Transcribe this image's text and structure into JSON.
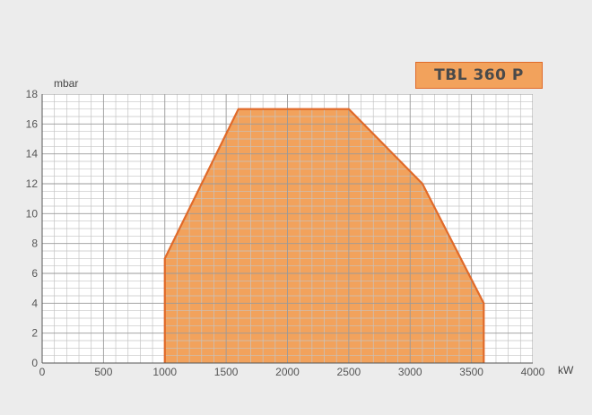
{
  "chart_data": {
    "type": "area",
    "title": "TBL 360 P",
    "xlabel": "kW",
    "ylabel": "mbar",
    "xlim": [
      0,
      4000
    ],
    "ylim": [
      0,
      18
    ],
    "x_ticks": [
      0,
      500,
      1000,
      1500,
      2000,
      2500,
      3000,
      3500,
      4000
    ],
    "y_ticks": [
      0,
      2,
      4,
      6,
      8,
      10,
      12,
      14,
      16,
      18
    ],
    "grid": true,
    "series": [
      {
        "x": [
          1000,
          1000,
          1600,
          2500,
          3100,
          3600,
          3600
        ],
        "y": [
          0,
          7,
          17,
          17,
          12,
          4,
          0
        ]
      }
    ]
  },
  "colors": {
    "fill": "#f2a25c",
    "outline": "#e06a2a",
    "grid_major": "#9a9a9a",
    "grid_minor": "#c4c4c4",
    "background": "#ececec"
  }
}
